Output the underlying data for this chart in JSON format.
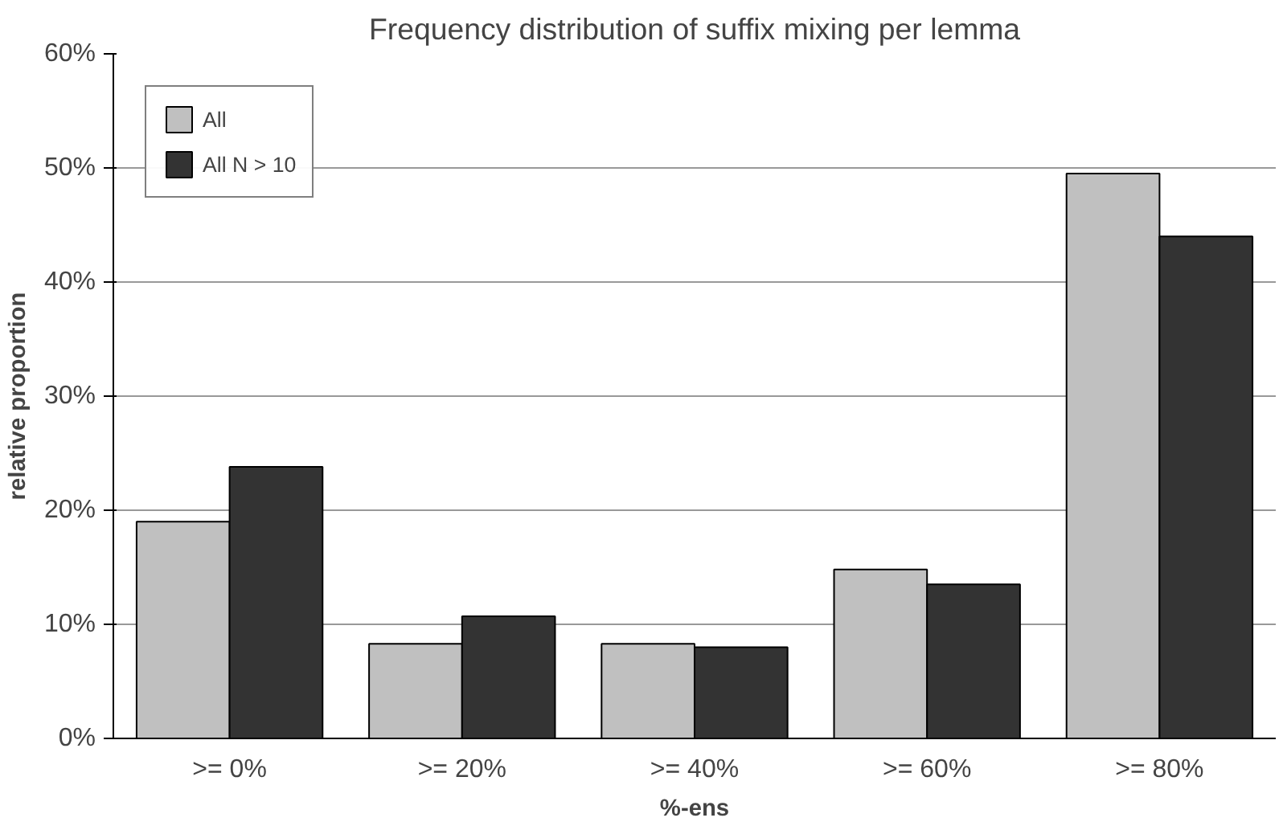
{
  "chart_data": {
    "type": "bar",
    "title": "Frequency distribution of suffix mixing per lemma",
    "xlabel": "%-ens",
    "ylabel": "relative proportion",
    "categories": [
      ">= 0%",
      ">= 20%",
      ">= 40%",
      ">= 60%",
      ">= 80%"
    ],
    "series": [
      {
        "name": "All",
        "color": "#c0c0c0",
        "values": [
          19,
          8.3,
          8.3,
          14.8,
          49.5
        ]
      },
      {
        "name": "All N > 10",
        "color": "#333333",
        "values": [
          23.8,
          10.7,
          8,
          13.5,
          44
        ]
      }
    ],
    "ylim": [
      0,
      60
    ],
    "yticks": [
      {
        "value": 0,
        "label": "0%"
      },
      {
        "value": 10,
        "label": "10%"
      },
      {
        "value": 20,
        "label": "20%"
      },
      {
        "value": 30,
        "label": "30%"
      },
      {
        "value": 40,
        "label": "40%"
      },
      {
        "value": 50,
        "label": "50%"
      },
      {
        "value": 60,
        "label": "60%"
      }
    ],
    "grid": "y",
    "legend": "top left"
  }
}
